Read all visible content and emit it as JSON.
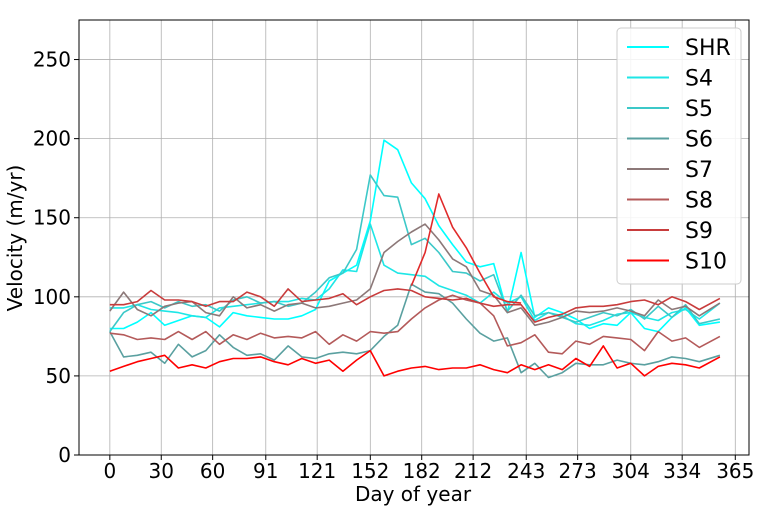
{
  "chart_data": {
    "type": "line",
    "xlabel": "Day of year",
    "ylabel": "Velocity (m/yr)",
    "xlim": [
      -18,
      373
    ],
    "ylim": [
      0,
      275
    ],
    "xticks": [
      0,
      30,
      60,
      91,
      121,
      152,
      182,
      212,
      243,
      273,
      304,
      334,
      365
    ],
    "yticks": [
      0,
      50,
      100,
      150,
      200,
      250
    ],
    "grid": true,
    "legend_position": "top-right",
    "series": [
      {
        "name": "SHR",
        "color": "#00ffff",
        "x": [
          0,
          8,
          16,
          24,
          32,
          40,
          48,
          56,
          64,
          72,
          80,
          88,
          96,
          104,
          112,
          120,
          128,
          136,
          144,
          152,
          160,
          168,
          176,
          184,
          192,
          200,
          208,
          216,
          224,
          232,
          240,
          248,
          256,
          264,
          272,
          280,
          288,
          296,
          304,
          312,
          320,
          328,
          336,
          344,
          356
        ],
        "y": [
          80,
          80,
          84,
          90,
          82,
          85,
          88,
          87,
          81,
          90,
          88,
          87,
          86,
          86,
          88,
          92,
          110,
          115,
          120,
          148,
          199,
          193,
          172,
          162,
          145,
          133,
          122,
          119,
          121,
          90,
          128,
          87,
          93,
          90,
          86,
          80,
          83,
          82,
          90,
          80,
          78,
          87,
          93,
          82,
          84
        ]
      },
      {
        "name": "S4",
        "color": "#1ee6e6",
        "x": [
          0,
          8,
          16,
          24,
          32,
          40,
          48,
          56,
          64,
          72,
          80,
          88,
          96,
          104,
          112,
          120,
          128,
          136,
          144,
          152,
          160,
          168,
          176,
          184,
          192,
          200,
          208,
          216,
          224,
          232,
          240,
          248,
          256,
          264,
          272,
          280,
          288,
          296,
          304,
          312,
          320,
          328,
          336,
          344,
          356
        ],
        "y": [
          93,
          93,
          95,
          92,
          91,
          90,
          88,
          87,
          93,
          94,
          95,
          96,
          97,
          97,
          99,
          98,
          105,
          117,
          116,
          146,
          120,
          115,
          114,
          113,
          107,
          104,
          101,
          96,
          103,
          96,
          100,
          85,
          90,
          88,
          83,
          82,
          85,
          89,
          90,
          87,
          85,
          90,
          92,
          86,
          96
        ]
      },
      {
        "name": "S5",
        "color": "#3cc8c8",
        "x": [
          0,
          8,
          16,
          24,
          32,
          40,
          48,
          56,
          64,
          72,
          80,
          88,
          96,
          104,
          112,
          120,
          128,
          136,
          144,
          152,
          160,
          168,
          176,
          184,
          192,
          200,
          208,
          216,
          224,
          232,
          240,
          248,
          256,
          264,
          272,
          280,
          288,
          296,
          304,
          312,
          320,
          328,
          336,
          344,
          356
        ],
        "y": [
          78,
          90,
          95,
          97,
          93,
          97,
          94,
          95,
          91,
          98,
          100,
          96,
          97,
          94,
          96,
          103,
          112,
          115,
          130,
          177,
          164,
          163,
          133,
          137,
          128,
          116,
          115,
          110,
          114,
          91,
          101,
          88,
          90,
          87,
          84,
          87,
          90,
          88,
          92,
          86,
          94,
          87,
          95,
          83,
          86
        ]
      },
      {
        "name": "S6",
        "color": "#5aa0a0",
        "x": [
          0,
          8,
          16,
          24,
          32,
          40,
          48,
          56,
          64,
          72,
          80,
          88,
          96,
          104,
          112,
          120,
          128,
          136,
          144,
          152,
          160,
          168,
          176,
          184,
          192,
          200,
          208,
          216,
          224,
          232,
          240,
          248,
          256,
          264,
          272,
          280,
          288,
          296,
          304,
          312,
          320,
          328,
          336,
          344,
          356
        ],
        "y": [
          78,
          62,
          63,
          65,
          58,
          70,
          62,
          66,
          76,
          68,
          63,
          64,
          60,
          69,
          62,
          61,
          64,
          65,
          64,
          66,
          75,
          82,
          108,
          103,
          102,
          96,
          86,
          77,
          72,
          74,
          52,
          58,
          49,
          52,
          58,
          57,
          57,
          60,
          58,
          57,
          59,
          62,
          61,
          59,
          63
        ]
      },
      {
        "name": "S7",
        "color": "#8c7878",
        "x": [
          0,
          8,
          16,
          24,
          32,
          40,
          48,
          56,
          64,
          72,
          80,
          88,
          96,
          104,
          112,
          120,
          128,
          136,
          144,
          152,
          160,
          168,
          176,
          184,
          192,
          200,
          208,
          216,
          224,
          232,
          240,
          248,
          256,
          264,
          272,
          280,
          288,
          296,
          304,
          312,
          320,
          328,
          336,
          344,
          356
        ],
        "y": [
          91,
          103,
          92,
          88,
          94,
          96,
          97,
          90,
          88,
          100,
          93,
          95,
          91,
          95,
          96,
          93,
          94,
          96,
          98,
          105,
          128,
          135,
          141,
          146,
          136,
          124,
          119,
          104,
          101,
          90,
          93,
          82,
          84,
          87,
          91,
          90,
          91,
          93,
          91,
          88,
          98,
          92,
          94,
          88,
          96
        ]
      },
      {
        "name": "S8",
        "color": "#b45a5a",
        "x": [
          0,
          8,
          16,
          24,
          32,
          40,
          48,
          56,
          64,
          72,
          80,
          88,
          96,
          104,
          112,
          120,
          128,
          136,
          144,
          152,
          160,
          168,
          176,
          184,
          192,
          200,
          208,
          216,
          224,
          232,
          240,
          248,
          256,
          264,
          272,
          280,
          288,
          296,
          304,
          312,
          320,
          328,
          336,
          344,
          356
        ],
        "y": [
          77,
          76,
          73,
          74,
          73,
          78,
          73,
          78,
          70,
          76,
          73,
          77,
          74,
          75,
          74,
          78,
          70,
          76,
          72,
          78,
          77,
          78,
          86,
          93,
          98,
          101,
          98,
          96,
          88,
          69,
          71,
          76,
          65,
          64,
          72,
          70,
          75,
          74,
          73,
          66,
          78,
          72,
          74,
          68,
          75
        ]
      },
      {
        "name": "S9",
        "color": "#c83c3c",
        "x": [
          0,
          8,
          16,
          24,
          32,
          40,
          48,
          56,
          64,
          72,
          80,
          88,
          96,
          104,
          112,
          120,
          128,
          136,
          144,
          152,
          160,
          168,
          176,
          184,
          192,
          200,
          208,
          216,
          224,
          232,
          240,
          248,
          256,
          264,
          272,
          280,
          288,
          296,
          304,
          312,
          320,
          328,
          336,
          344,
          356
        ],
        "y": [
          95,
          95,
          97,
          104,
          98,
          98,
          97,
          94,
          97,
          97,
          103,
          100,
          94,
          105,
          97,
          98,
          99,
          102,
          95,
          100,
          104,
          105,
          104,
          100,
          99,
          98,
          99,
          96,
          94,
          95,
          95,
          84,
          87,
          89,
          93,
          94,
          94,
          95,
          97,
          98,
          95,
          100,
          97,
          92,
          99
        ]
      },
      {
        "name": "S10",
        "color": "#ff0000",
        "x": [
          0,
          8,
          16,
          24,
          32,
          40,
          48,
          56,
          64,
          72,
          80,
          88,
          96,
          104,
          112,
          120,
          128,
          136,
          144,
          152,
          160,
          168,
          176,
          184,
          192,
          200,
          208,
          216,
          224,
          232,
          240,
          248,
          256,
          264,
          272,
          280,
          288,
          296,
          304,
          312,
          320,
          328,
          336,
          344,
          356
        ],
        "y": [
          53,
          56,
          59,
          61,
          63,
          55,
          57,
          55,
          59,
          61,
          61,
          62,
          59,
          57,
          61,
          58,
          60,
          53,
          60,
          66,
          50,
          53,
          55,
          56,
          54,
          55,
          55,
          57,
          54,
          52,
          57,
          54,
          57,
          54,
          61,
          56,
          69,
          55,
          58,
          50,
          56,
          58,
          57,
          55,
          62
        ]
      },
      {
        "name": "",
        "color": "#e02a2a",
        "x": [
          176,
          184,
          192,
          200,
          208,
          216,
          224,
          232,
          240
        ],
        "y": [
          107,
          128,
          165,
          144,
          131,
          115,
          100,
          97,
          96
        ]
      }
    ]
  }
}
